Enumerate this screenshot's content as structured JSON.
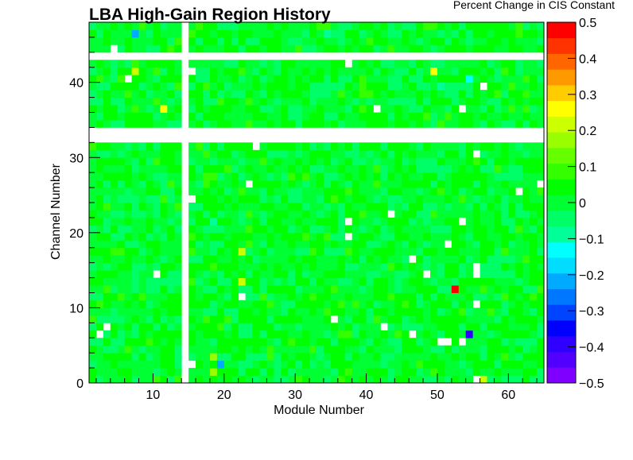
{
  "chart_data": {
    "type": "heatmap",
    "title": "LBA High-Gain Region History",
    "xlabel": "Module Number",
    "ylabel": "Channel Number",
    "colorbar_label": "Percent Change in CIS Constant",
    "xlim": [
      1,
      65
    ],
    "ylim": [
      0,
      48
    ],
    "zlim": [
      -0.5,
      0.5
    ],
    "x_ticks": [
      "10",
      "20",
      "30",
      "40",
      "50",
      "60"
    ],
    "y_ticks": [
      "0",
      "10",
      "20",
      "30",
      "40"
    ],
    "colorbar_ticks": [
      "0.5",
      "0.4",
      "0.3",
      "0.2",
      "0.1",
      "0",
      "−0.1",
      "−0.2",
      "−0.3",
      "−0.4",
      "−0.5"
    ],
    "colorbar_tick_values": [
      0.5,
      0.4,
      0.3,
      0.2,
      0.1,
      0,
      -0.1,
      -0.2,
      -0.3,
      -0.4,
      -0.5
    ],
    "colormap": [
      "#7f00ff",
      "#5100ff",
      "#2f00ff",
      "#0000ff",
      "#0044ff",
      "#0077ff",
      "#00aaff",
      "#00ddff",
      "#00ffff",
      "#00ff99",
      "#00ff66",
      "#00ff33",
      "#00ff00",
      "#33ff00",
      "#66ff00",
      "#99ff00",
      "#ccff00",
      "#ffff00",
      "#ffcc00",
      "#ff9900",
      "#ff6600",
      "#ff3300",
      "#ff0000"
    ],
    "typical_value": 0.01,
    "empty_modules": [
      14
    ],
    "empty_channels": [
      32,
      33,
      43
    ],
    "empty_cells": [
      [
        4,
        44
      ],
      [
        6,
        40
      ],
      [
        15,
        41
      ],
      [
        24,
        31
      ],
      [
        37,
        42
      ],
      [
        41,
        36
      ],
      [
        53,
        36
      ],
      [
        56,
        39
      ],
      [
        23,
        26
      ],
      [
        55,
        30
      ],
      [
        61,
        25
      ],
      [
        64,
        26
      ],
      [
        66,
        30
      ],
      [
        15,
        24
      ],
      [
        37,
        21
      ],
      [
        43,
        22
      ],
      [
        53,
        21
      ],
      [
        37,
        19
      ],
      [
        51,
        18
      ],
      [
        46,
        16
      ],
      [
        55,
        15
      ],
      [
        48,
        14
      ],
      [
        55,
        14
      ],
      [
        10,
        14
      ],
      [
        22,
        11
      ],
      [
        55,
        10
      ],
      [
        35,
        8
      ],
      [
        42,
        7
      ],
      [
        46,
        6
      ],
      [
        2,
        6
      ],
      [
        3,
        7
      ],
      [
        50,
        5
      ],
      [
        51,
        5
      ],
      [
        53,
        5
      ],
      [
        15,
        2
      ],
      [
        55,
        0
      ]
    ],
    "notable_cells": [
      {
        "module": 52,
        "channel": 12,
        "value": 0.5
      },
      {
        "module": 54,
        "channel": 6,
        "value": -0.38
      },
      {
        "module": 19,
        "channel": 2,
        "value": -0.22
      },
      {
        "module": 7,
        "channel": 46,
        "value": -0.2
      },
      {
        "module": 34,
        "channel": 46,
        "value": -0.1
      },
      {
        "module": 7,
        "channel": 41,
        "value": 0.2
      },
      {
        "module": 49,
        "channel": 41,
        "value": 0.24
      },
      {
        "module": 11,
        "channel": 36,
        "value": 0.24
      },
      {
        "module": 22,
        "channel": 17,
        "value": 0.22
      },
      {
        "module": 22,
        "channel": 13,
        "value": 0.2
      },
      {
        "module": 56,
        "channel": 0,
        "value": 0.22
      },
      {
        "module": 18,
        "channel": 1,
        "value": 0.17
      },
      {
        "module": 18,
        "channel": 3,
        "value": 0.17
      },
      {
        "module": 54,
        "channel": 40,
        "value": -0.14
      },
      {
        "module": 18,
        "channel": 21,
        "value": -0.1
      },
      {
        "module": 50,
        "channel": 39,
        "value": -0.1
      }
    ]
  }
}
